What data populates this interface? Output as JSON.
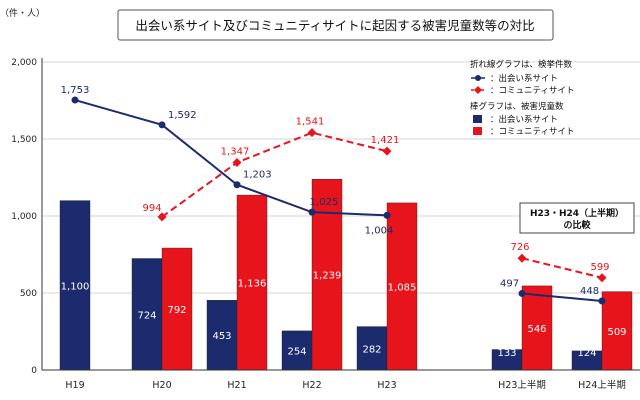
{
  "chart_data": {
    "type": "bar",
    "title": "出会い系サイト及びコミュニティサイトに起因する被害児童数等の対比",
    "ylabel": "（件・人）",
    "ylim": [
      0,
      2000
    ],
    "yticks": [
      "0",
      "500",
      "1,000",
      "1,500",
      "2,000"
    ],
    "categories": [
      "H19",
      "H20",
      "H21",
      "H22",
      "H23",
      "H23上半期",
      "H24上半期"
    ],
    "bar_series": [
      {
        "name": "：出会い系サイト",
        "color": "#1c2a6e",
        "values": [
          1100,
          724,
          453,
          254,
          282,
          133,
          124
        ],
        "labels": [
          "1,100",
          "724",
          "453",
          "254",
          "282",
          "133",
          "124"
        ]
      },
      {
        "name": "：コミュニティサイト",
        "color": "#e8141c",
        "values": [
          null,
          792,
          1136,
          1239,
          1085,
          546,
          509
        ],
        "labels": [
          "",
          "792",
          "1,136",
          "1,239",
          "1,085",
          "546",
          "509"
        ]
      }
    ],
    "line_series": [
      {
        "name": "：出会い系サイト",
        "color": "#1c2a6e",
        "values": [
          1753,
          1592,
          1203,
          1025,
          1004,
          497,
          448
        ],
        "labels": [
          "1,753",
          "1,592",
          "1,203",
          "1,025",
          "1,004",
          "497",
          "448"
        ]
      },
      {
        "name": "：コミュニティサイト",
        "color": "#e8141c",
        "values": [
          null,
          994,
          1347,
          1541,
          1421,
          726,
          599
        ],
        "labels": [
          "",
          "994",
          "1,347",
          "1,541",
          "1,421",
          "726",
          "599"
        ]
      }
    ],
    "legend": {
      "line_title": "折れ線グラフは、検挙件数",
      "bar_title": "棒グラフは、被害児童数",
      "position": "top-right"
    },
    "annotation": "H23・H24（上半期）\nの比較"
  },
  "colors": {
    "navy": "#1c2a6e",
    "red": "#e8141c"
  }
}
